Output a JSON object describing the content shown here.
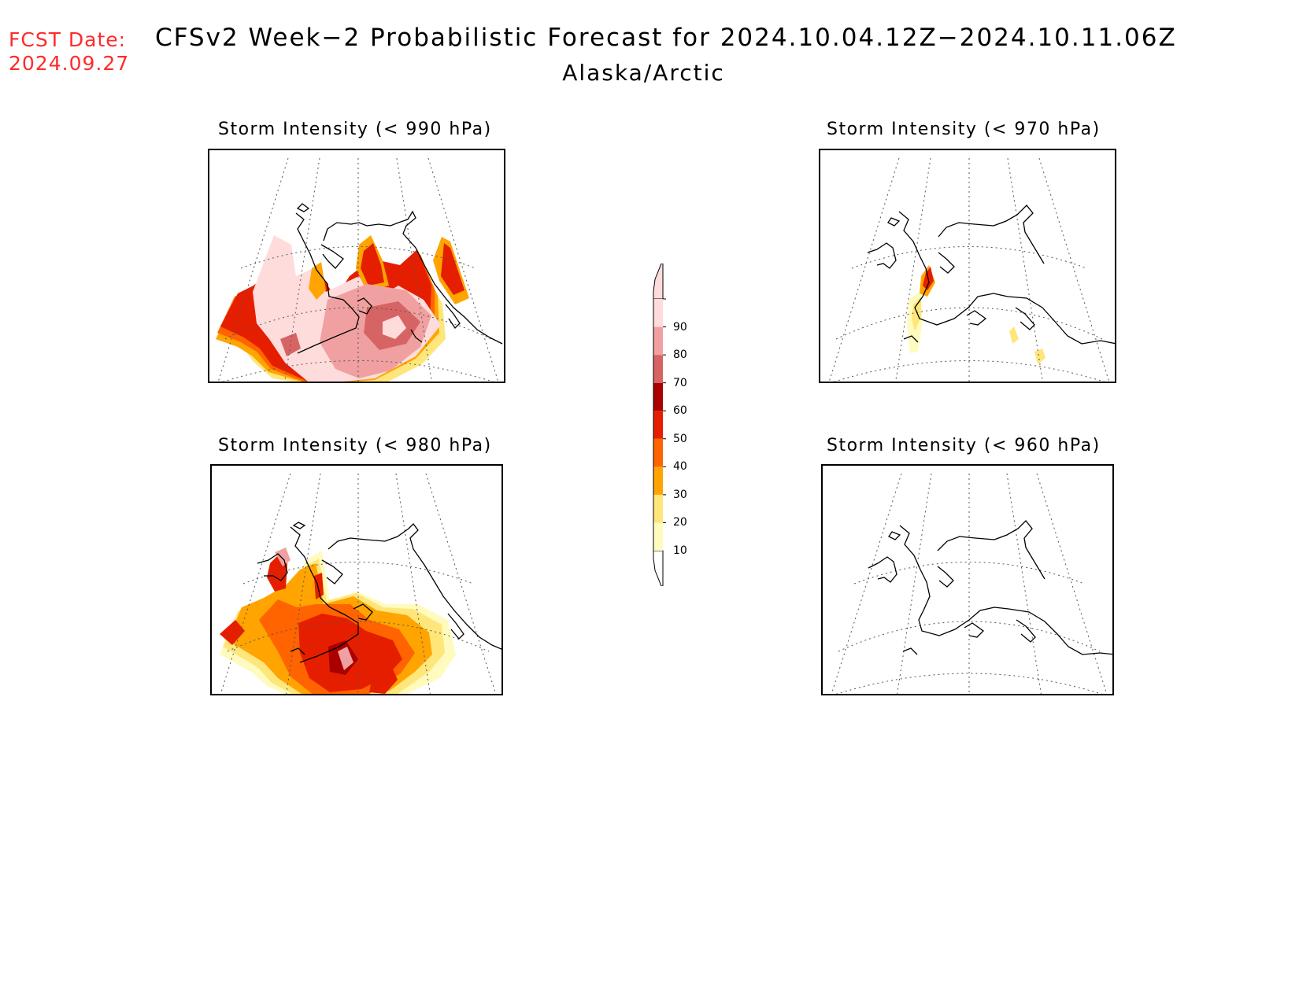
{
  "header": {
    "fcst_label": "FCST Date:",
    "fcst_date": "2024.09.27",
    "title": "CFSv2 Week−2 Probabilistic Forecast for 2024.10.04.12Z−2024.10.11.06Z",
    "subtitle": "Alaska/Arctic"
  },
  "panels": [
    {
      "id": "p990",
      "title": "Storm Intensity (< 990 hPa)",
      "threshold_hPa": 990,
      "coverage": "widespread high"
    },
    {
      "id": "p970",
      "title": "Storm Intensity (< 970 hPa)",
      "threshold_hPa": 970,
      "coverage": "isolated low"
    },
    {
      "id": "p980",
      "title": "Storm Intensity (< 980 hPa)",
      "threshold_hPa": 980,
      "coverage": "widespread moderate"
    },
    {
      "id": "p960",
      "title": "Storm Intensity (< 960 hPa)",
      "threshold_hPa": 960,
      "coverage": "none"
    }
  ],
  "legend": {
    "levels": [
      "10",
      "20",
      "30",
      "40",
      "50",
      "60",
      "70",
      "80",
      "90"
    ],
    "colors": [
      "#fffbbf",
      "#ffe67a",
      "#ffa400",
      "#ff6400",
      "#e61e00",
      "#aa0000",
      "#d76464",
      "#f0a0a0",
      "#ffdcdc"
    ]
  },
  "colors": {
    "fcst": "#ff2a2a",
    "p10": "#fffbbf",
    "p20": "#ffe67a",
    "p30": "#ffa400",
    "p40": "#ff6400",
    "p50": "#e61e00",
    "p60": "#aa0000",
    "p70": "#d76464",
    "p80": "#f0a0a0",
    "p90": "#ffdcdc"
  }
}
